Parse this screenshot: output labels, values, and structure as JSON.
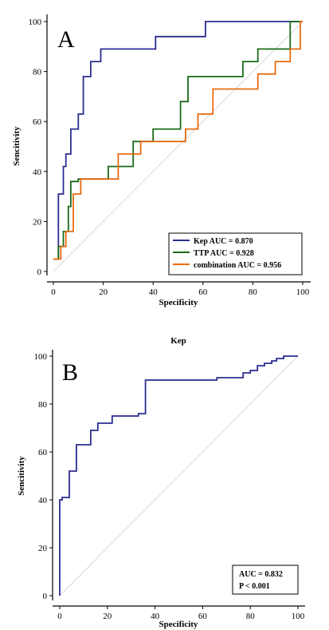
{
  "chart_data": [
    {
      "type": "line",
      "panel_label": "A",
      "title": "",
      "xlabel": "Specificity",
      "ylabel": "Sencitivity",
      "xlim": [
        0,
        100
      ],
      "ylim": [
        0,
        100
      ],
      "xticks": [
        0,
        20,
        40,
        60,
        80,
        100
      ],
      "yticks": [
        0,
        20,
        40,
        60,
        80,
        100
      ],
      "legend_position": "bottom-right",
      "diagonal_reference": true,
      "series": [
        {
          "name": "Kep AUC = 0.870",
          "color": "#2b2d91",
          "x": [
            0,
            2,
            2,
            4,
            4,
            5,
            5,
            7,
            7,
            10,
            10,
            12,
            12,
            15,
            15,
            19,
            19,
            21,
            21,
            41,
            41,
            61,
            61,
            100
          ],
          "y": [
            5,
            5,
            31,
            31,
            42,
            42,
            47,
            47,
            57,
            57,
            63,
            63,
            78,
            78,
            84,
            84,
            89,
            89,
            89,
            89,
            94,
            94,
            100,
            100
          ]
        },
        {
          "name": "TTP AUC = 0.928",
          "color": "#1a6b1a",
          "x": [
            0,
            2,
            2,
            4,
            4,
            6,
            6,
            7,
            7,
            10,
            10,
            22,
            22,
            32,
            32,
            40,
            40,
            48,
            48,
            51,
            51,
            54,
            54,
            66,
            66,
            76,
            76,
            82,
            82,
            95,
            95,
            100
          ],
          "y": [
            5,
            5,
            10,
            10,
            16,
            16,
            26,
            26,
            36,
            36,
            37,
            37,
            42,
            42,
            52,
            52,
            57,
            57,
            57,
            57,
            68,
            68,
            78,
            78,
            78,
            78,
            84,
            84,
            89,
            89,
            100,
            100
          ]
        },
        {
          "name": "combination AUC = 0.956",
          "color": "#e86b10",
          "x": [
            0,
            3,
            3,
            5,
            5,
            8,
            8,
            11,
            11,
            26,
            26,
            35,
            35,
            53,
            53,
            58,
            58,
            64,
            64,
            82,
            82,
            89,
            89,
            95,
            95,
            99,
            99,
            100
          ],
          "y": [
            5,
            5,
            10,
            10,
            16,
            16,
            31,
            31,
            37,
            37,
            47,
            47,
            52,
            52,
            57,
            57,
            63,
            63,
            73,
            73,
            79,
            79,
            84,
            84,
            89,
            89,
            100,
            100
          ]
        }
      ]
    },
    {
      "type": "line",
      "panel_label": "B",
      "title": "Kep",
      "xlabel": "Specificity",
      "ylabel": "Sencitivity",
      "xlim": [
        0,
        100
      ],
      "ylim": [
        0,
        100
      ],
      "xticks": [
        0,
        20,
        40,
        60,
        80,
        100
      ],
      "yticks": [
        0,
        20,
        40,
        60,
        80,
        100
      ],
      "legend_position": "bottom-right",
      "diagonal_reference": true,
      "annotation": [
        "AUC = 0.832",
        "P < 0.001"
      ],
      "series": [
        {
          "name": "",
          "color": "#2b2d91",
          "x": [
            0,
            0,
            1,
            1,
            4,
            4,
            7,
            7,
            13,
            13,
            16,
            16,
            22,
            22,
            33,
            33,
            36,
            36,
            66,
            66,
            77,
            77,
            80,
            80,
            83,
            83,
            86,
            86,
            89,
            89,
            91,
            91,
            94,
            94,
            100
          ],
          "y": [
            0,
            40,
            40,
            41,
            41,
            52,
            52,
            63,
            63,
            69,
            69,
            72,
            72,
            75,
            75,
            76,
            76,
            90,
            90,
            91,
            91,
            93,
            93,
            94,
            94,
            96,
            96,
            97,
            97,
            98,
            98,
            99,
            99,
            100,
            100
          ]
        }
      ]
    }
  ]
}
